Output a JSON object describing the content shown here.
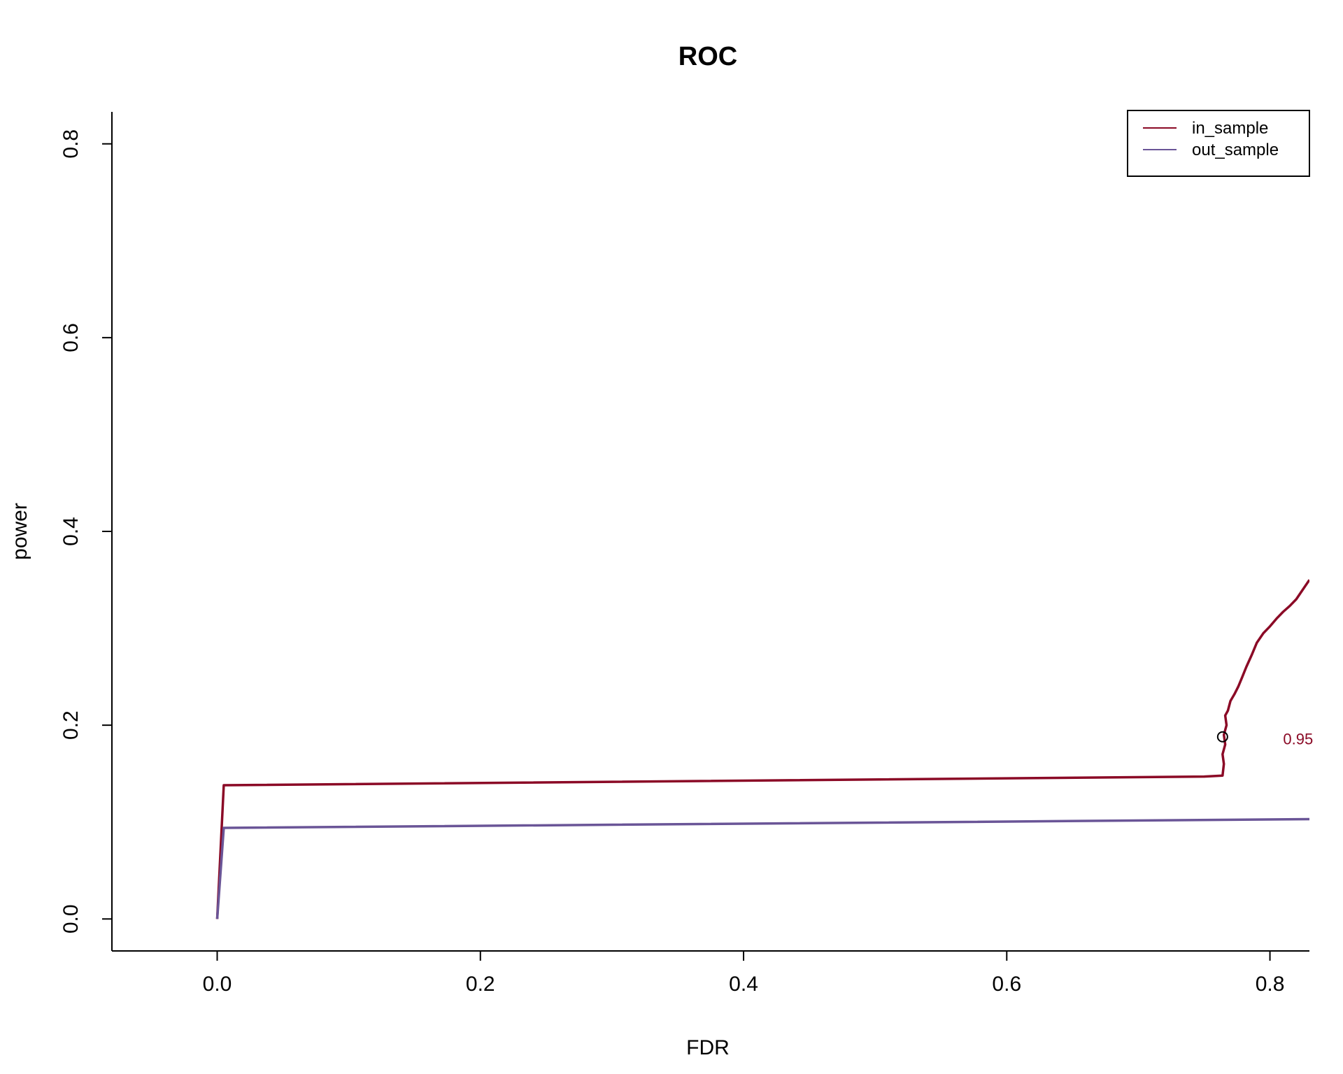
{
  "chart_data": {
    "type": "line",
    "title": "ROC",
    "xlabel": "FDR",
    "ylabel": "power",
    "xlim": [
      -0.08,
      0.83
    ],
    "ylim": [
      -0.033,
      0.833
    ],
    "x_ticks": [
      "0.0",
      "0.2",
      "0.4",
      "0.6",
      "0.8"
    ],
    "y_ticks": [
      "0.0",
      "0.2",
      "0.4",
      "0.6",
      "0.8"
    ],
    "grid": false,
    "legend_position": "top-right",
    "series": [
      {
        "name": "in_sample",
        "color": "#8b0a26",
        "x": [
          0,
          0.005,
          0.75,
          0.764,
          0.765,
          0.764,
          0.766,
          0.765,
          0.767,
          0.766,
          0.768,
          0.77,
          0.773,
          0.776,
          0.779,
          0.782,
          0.786,
          0.79,
          0.795,
          0.8,
          0.805,
          0.81,
          0.815,
          0.82,
          0.825,
          0.83
        ],
        "y": [
          0.0,
          0.138,
          0.147,
          0.148,
          0.16,
          0.17,
          0.18,
          0.19,
          0.2,
          0.21,
          0.215,
          0.225,
          0.232,
          0.24,
          0.25,
          0.26,
          0.272,
          0.285,
          0.295,
          0.302,
          0.31,
          0.317,
          0.323,
          0.33,
          0.34,
          0.35
        ]
      },
      {
        "name": "out_sample",
        "color": "#6a5597",
        "x": [
          0,
          0.005,
          0.83
        ],
        "y": [
          0.0,
          0.094,
          0.103
        ]
      }
    ],
    "annotations": [
      {
        "text": "0.95",
        "x": 0.81,
        "y": 0.186,
        "color": "#8b0a26"
      }
    ],
    "markers": [
      {
        "shape": "open-circle",
        "x": 0.764,
        "y": 0.188
      }
    ]
  }
}
